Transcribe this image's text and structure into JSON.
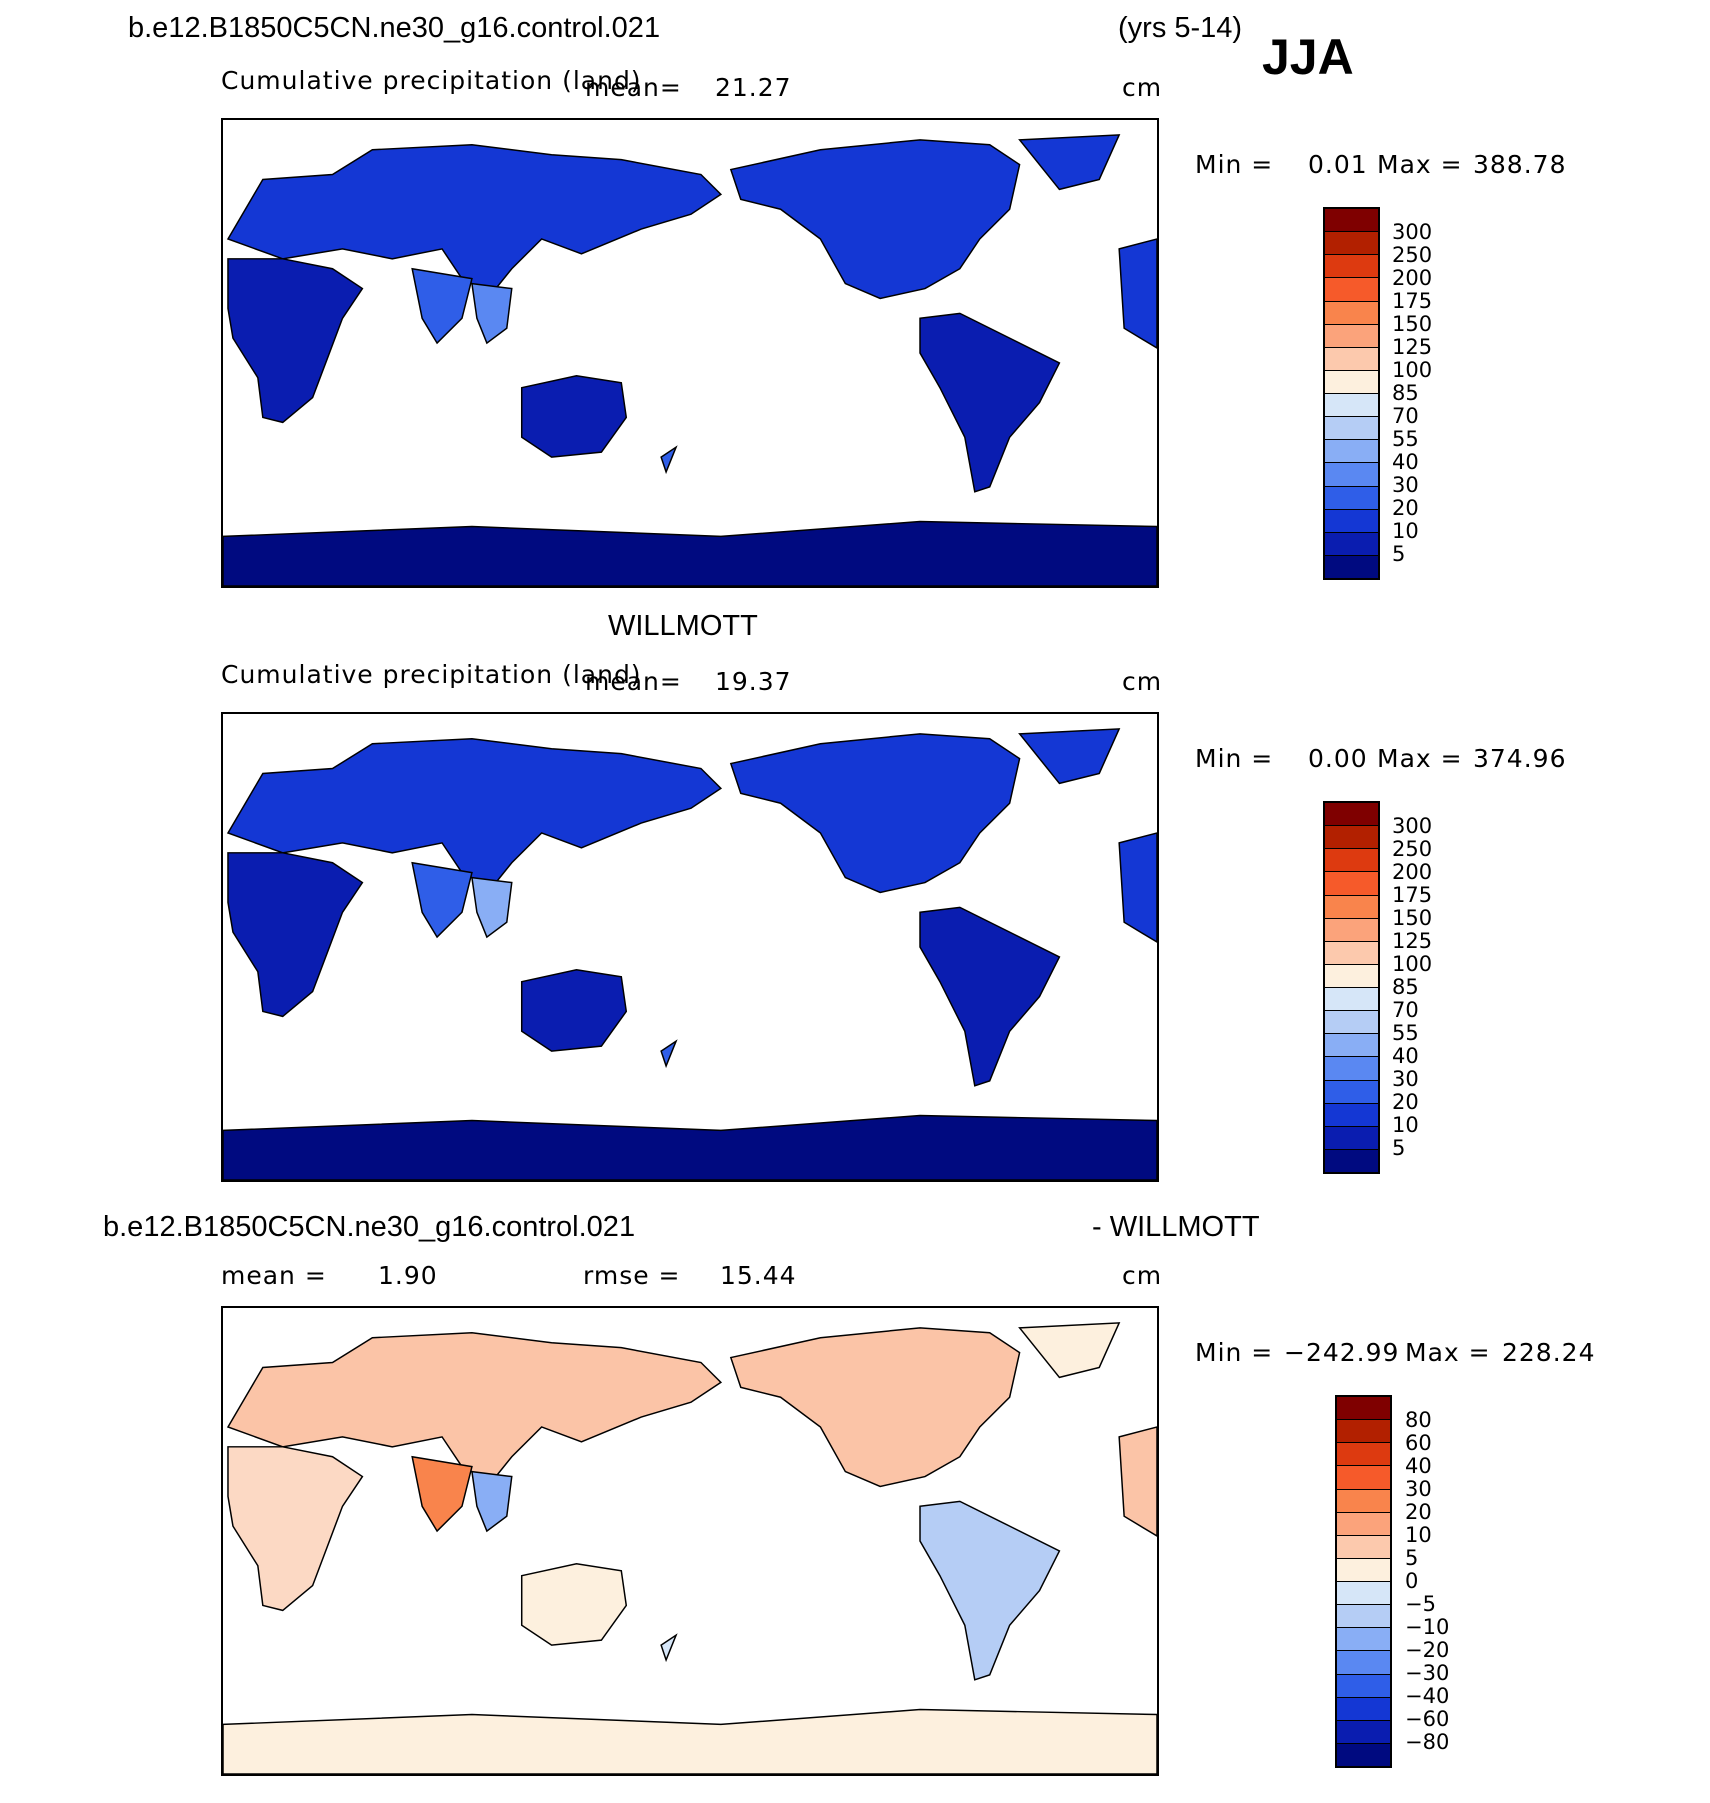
{
  "header": {
    "case_name": "b.e12.B1850C5CN.ne30_g16.control.021",
    "years": "(yrs 5-14)",
    "season": "JJA"
  },
  "panels": [
    {
      "title": "",
      "field": "Cumulative precipitation (land)",
      "mean_label": "mean=",
      "mean_value": "21.27",
      "units": "cm",
      "min_label": "Min =",
      "min_value": "0.01",
      "max_label": "Max =",
      "max_value": "388.78"
    },
    {
      "title": "WILLMOTT",
      "field": "Cumulative precipitation (land)",
      "mean_label": "mean=",
      "mean_value": "19.37",
      "units": "cm",
      "min_label": "Min =",
      "min_value": "0.00",
      "max_label": "Max =",
      "max_value": "374.96"
    },
    {
      "title_left": "b.e12.B1850C5CN.ne30_g16.control.021",
      "title_right": "- WILLMOTT",
      "mean_label": "mean =",
      "mean_value": "1.90",
      "rmse_label": "rmse =",
      "rmse_value": "15.44",
      "units": "cm",
      "min_label": "Min =",
      "min_value": "−242.99",
      "max_label": "Max =",
      "max_value": "228.24"
    }
  ],
  "colorbar_abs": {
    "labels": [
      "300",
      "250",
      "200",
      "175",
      "150",
      "125",
      "100",
      "85",
      "70",
      "55",
      "40",
      "30",
      "20",
      "10",
      "5"
    ],
    "colors": [
      "#7f0000",
      "#b22000",
      "#dd3a10",
      "#f65a2a",
      "#f9844c",
      "#fba37b",
      "#fcc9ad",
      "#fdf0de",
      "#d6e6f8",
      "#b5cdf5",
      "#89aef5",
      "#5a88f2",
      "#2f5ee8",
      "#1437d4",
      "#0a1db0",
      "#000a80"
    ]
  },
  "colorbar_diff": {
    "labels": [
      "80",
      "60",
      "40",
      "30",
      "20",
      "10",
      "5",
      "0",
      "−5",
      "−10",
      "−20",
      "−30",
      "−40",
      "−60",
      "−80"
    ],
    "colors": [
      "#7f0000",
      "#b22000",
      "#dd3a10",
      "#f65a2a",
      "#f9844c",
      "#fba37b",
      "#fcc9ad",
      "#fdf0de",
      "#d6e6f8",
      "#b5cdf5",
      "#89aef5",
      "#5a88f2",
      "#2f5ee8",
      "#1437d4",
      "#0a1db0",
      "#000a80"
    ]
  }
}
